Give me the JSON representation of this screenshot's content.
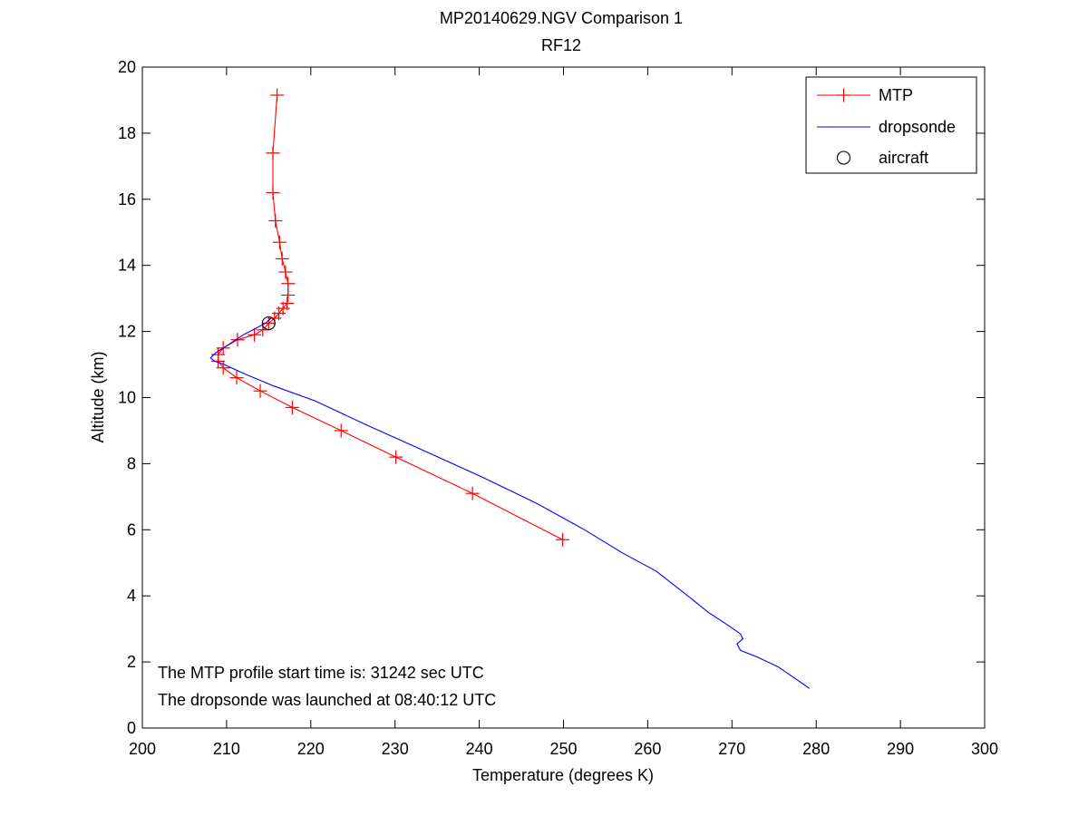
{
  "chart_data": {
    "type": "line",
    "title": "MP20140629.NGV Comparison 1",
    "subtitle": "RF12",
    "xlabel": "Temperature (degrees K)",
    "ylabel": "Altitude (km)",
    "xlim": [
      200,
      300
    ],
    "ylim": [
      0,
      20
    ],
    "xticks": [
      200,
      210,
      220,
      230,
      240,
      250,
      260,
      270,
      280,
      290,
      300
    ],
    "yticks": [
      0,
      2,
      4,
      6,
      8,
      10,
      12,
      14,
      16,
      18,
      20
    ],
    "grid": false,
    "legend_position": "top-right",
    "series": [
      {
        "name": "MTP",
        "color": "#ff0000",
        "marker": "plus",
        "points": [
          [
            216.0,
            19.15
          ],
          [
            215.5,
            17.4
          ],
          [
            215.5,
            16.2
          ],
          [
            215.8,
            15.35
          ],
          [
            216.3,
            14.7
          ],
          [
            216.6,
            14.2
          ],
          [
            217.0,
            13.8
          ],
          [
            217.3,
            13.45
          ],
          [
            217.3,
            13.1
          ],
          [
            217.2,
            12.85
          ],
          [
            216.7,
            12.7
          ],
          [
            216.2,
            12.55
          ],
          [
            215.7,
            12.4
          ],
          [
            215.0,
            12.25
          ],
          [
            214.3,
            12.05
          ],
          [
            213.3,
            11.9
          ],
          [
            211.3,
            11.75
          ],
          [
            209.6,
            11.5
          ],
          [
            209.0,
            11.3
          ],
          [
            209.0,
            11.1
          ],
          [
            209.6,
            10.9
          ],
          [
            211.2,
            10.6
          ],
          [
            214.0,
            10.2
          ],
          [
            217.8,
            9.7
          ],
          [
            223.6,
            9.0
          ],
          [
            230.1,
            8.2
          ],
          [
            239.2,
            7.1
          ],
          [
            249.9,
            5.7
          ]
        ]
      },
      {
        "name": "dropsonde",
        "color": "#0000ff",
        "marker": "none",
        "points": [
          [
            215.3,
            12.4
          ],
          [
            214.6,
            12.25
          ],
          [
            213.5,
            12.1
          ],
          [
            212.0,
            11.9
          ],
          [
            210.2,
            11.6
          ],
          [
            208.7,
            11.35
          ],
          [
            208.1,
            11.2
          ],
          [
            208.6,
            11.1
          ],
          [
            209.7,
            11.0
          ],
          [
            212.3,
            10.7
          ],
          [
            215.6,
            10.35
          ],
          [
            220.5,
            9.9
          ],
          [
            226.8,
            9.15
          ],
          [
            233.8,
            8.35
          ],
          [
            240.3,
            7.6
          ],
          [
            246.8,
            6.8
          ],
          [
            252.5,
            6.0
          ],
          [
            257.0,
            5.3
          ],
          [
            261.0,
            4.75
          ],
          [
            263.0,
            4.35
          ],
          [
            265.0,
            3.95
          ],
          [
            267.2,
            3.5
          ],
          [
            269.3,
            3.15
          ],
          [
            271.0,
            2.85
          ],
          [
            271.3,
            2.7
          ],
          [
            270.6,
            2.55
          ],
          [
            271.0,
            2.35
          ],
          [
            273.0,
            2.15
          ],
          [
            275.5,
            1.85
          ],
          [
            277.5,
            1.5
          ],
          [
            279.2,
            1.2
          ]
        ]
      },
      {
        "name": "aircraft",
        "color": "#000000",
        "marker": "circle",
        "points": [
          [
            215.0,
            12.25
          ]
        ]
      }
    ],
    "annotations": [
      "The MTP profile start time is: 31242 sec UTC",
      "The dropsonde was launched at 08:40:12 UTC"
    ]
  }
}
